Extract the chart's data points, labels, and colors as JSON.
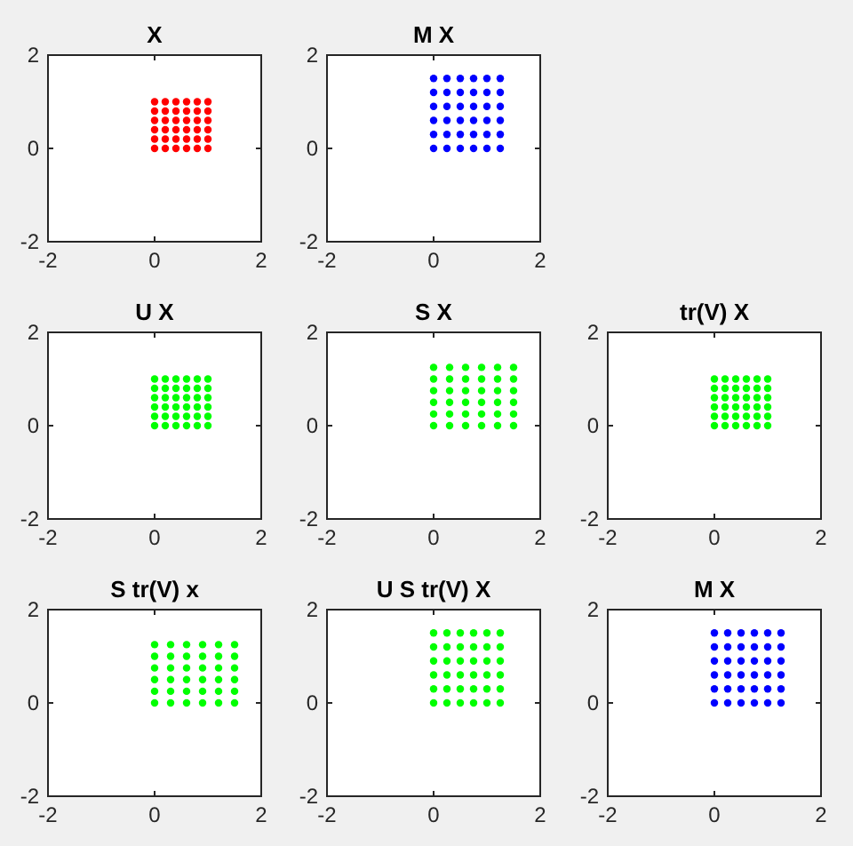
{
  "chart_data": [
    {
      "type": "scatter",
      "title": "X",
      "xlim": [
        -2,
        2
      ],
      "ylim": [
        -2,
        2
      ],
      "xticks": [
        -2,
        0,
        2
      ],
      "yticks": [
        -2,
        0,
        2
      ],
      "marker": "circle",
      "series": [
        {
          "color": "#ff0000",
          "x": [
            0,
            0,
            0,
            0,
            0,
            0,
            0.2,
            0.2,
            0.2,
            0.2,
            0.2,
            0.2,
            0.4,
            0.4,
            0.4,
            0.4,
            0.4,
            0.4,
            0.6,
            0.6,
            0.6,
            0.6,
            0.6,
            0.6,
            0.8,
            0.8,
            0.8,
            0.8,
            0.8,
            0.8,
            1,
            1,
            1,
            1,
            1,
            1
          ],
          "values": [
            0,
            0.2,
            0.4,
            0.6,
            0.8,
            1,
            0,
            0.2,
            0.4,
            0.6,
            0.8,
            1,
            0,
            0.2,
            0.4,
            0.6,
            0.8,
            1,
            0,
            0.2,
            0.4,
            0.6,
            0.8,
            1,
            0,
            0.2,
            0.4,
            0.6,
            0.8,
            1,
            0,
            0.2,
            0.4,
            0.6,
            0.8,
            1
          ]
        }
      ]
    },
    {
      "type": "scatter",
      "title": "M X",
      "xlim": [
        -2,
        2
      ],
      "ylim": [
        -2,
        2
      ],
      "xticks": [
        -2,
        0,
        2
      ],
      "yticks": [
        -2,
        0,
        2
      ],
      "marker": "circle",
      "series": [
        {
          "color": "#0000ff",
          "x": [
            0,
            0,
            0,
            0,
            0,
            0,
            0.25,
            0.25,
            0.25,
            0.25,
            0.25,
            0.25,
            0.5,
            0.5,
            0.5,
            0.5,
            0.5,
            0.5,
            0.75,
            0.75,
            0.75,
            0.75,
            0.75,
            0.75,
            1,
            1,
            1,
            1,
            1,
            1,
            1.25,
            1.25,
            1.25,
            1.25,
            1.25,
            1.25
          ],
          "values": [
            0,
            0.3,
            0.6,
            0.9,
            1.2,
            1.5,
            0,
            0.3,
            0.6,
            0.9,
            1.2,
            1.5,
            0,
            0.3,
            0.6,
            0.9,
            1.2,
            1.5,
            0,
            0.3,
            0.6,
            0.9,
            1.2,
            1.5,
            0,
            0.3,
            0.6,
            0.9,
            1.2,
            1.5,
            0,
            0.3,
            0.6,
            0.9,
            1.2,
            1.5
          ]
        }
      ]
    },
    {
      "type": "scatter",
      "title": "U X",
      "xlim": [
        -2,
        2
      ],
      "ylim": [
        -2,
        2
      ],
      "xticks": [
        -2,
        0,
        2
      ],
      "yticks": [
        -2,
        0,
        2
      ],
      "marker": "circle",
      "series": [
        {
          "color": "#00ff00",
          "x": [
            0,
            0,
            0,
            0,
            0,
            0,
            0.2,
            0.2,
            0.2,
            0.2,
            0.2,
            0.2,
            0.4,
            0.4,
            0.4,
            0.4,
            0.4,
            0.4,
            0.6,
            0.6,
            0.6,
            0.6,
            0.6,
            0.6,
            0.8,
            0.8,
            0.8,
            0.8,
            0.8,
            0.8,
            1,
            1,
            1,
            1,
            1,
            1
          ],
          "values": [
            0,
            0.2,
            0.4,
            0.6,
            0.8,
            1,
            0,
            0.2,
            0.4,
            0.6,
            0.8,
            1,
            0,
            0.2,
            0.4,
            0.6,
            0.8,
            1,
            0,
            0.2,
            0.4,
            0.6,
            0.8,
            1,
            0,
            0.2,
            0.4,
            0.6,
            0.8,
            1,
            0,
            0.2,
            0.4,
            0.6,
            0.8,
            1
          ]
        }
      ]
    },
    {
      "type": "scatter",
      "title": "S X",
      "xlim": [
        -2,
        2
      ],
      "ylim": [
        -2,
        2
      ],
      "xticks": [
        -2,
        0,
        2
      ],
      "yticks": [
        -2,
        0,
        2
      ],
      "marker": "circle",
      "series": [
        {
          "color": "#00ff00",
          "x": [
            0,
            0,
            0,
            0,
            0,
            0,
            0.3,
            0.3,
            0.3,
            0.3,
            0.3,
            0.3,
            0.6,
            0.6,
            0.6,
            0.6,
            0.6,
            0.6,
            0.9,
            0.9,
            0.9,
            0.9,
            0.9,
            0.9,
            1.2,
            1.2,
            1.2,
            1.2,
            1.2,
            1.2,
            1.5,
            1.5,
            1.5,
            1.5,
            1.5,
            1.5
          ],
          "values": [
            0,
            0.25,
            0.5,
            0.75,
            1,
            1.25,
            0,
            0.25,
            0.5,
            0.75,
            1,
            1.25,
            0,
            0.25,
            0.5,
            0.75,
            1,
            1.25,
            0,
            0.25,
            0.5,
            0.75,
            1,
            1.25,
            0,
            0.25,
            0.5,
            0.75,
            1,
            1.25,
            0,
            0.25,
            0.5,
            0.75,
            1,
            1.25
          ]
        }
      ]
    },
    {
      "type": "scatter",
      "title": "tr(V) X",
      "xlim": [
        -2,
        2
      ],
      "ylim": [
        -2,
        2
      ],
      "xticks": [
        -2,
        0,
        2
      ],
      "yticks": [
        -2,
        0,
        2
      ],
      "marker": "circle",
      "series": [
        {
          "color": "#00ff00",
          "x": [
            0,
            0,
            0,
            0,
            0,
            0,
            0.2,
            0.2,
            0.2,
            0.2,
            0.2,
            0.2,
            0.4,
            0.4,
            0.4,
            0.4,
            0.4,
            0.4,
            0.6,
            0.6,
            0.6,
            0.6,
            0.6,
            0.6,
            0.8,
            0.8,
            0.8,
            0.8,
            0.8,
            0.8,
            1,
            1,
            1,
            1,
            1,
            1
          ],
          "values": [
            0,
            0.2,
            0.4,
            0.6,
            0.8,
            1,
            0,
            0.2,
            0.4,
            0.6,
            0.8,
            1,
            0,
            0.2,
            0.4,
            0.6,
            0.8,
            1,
            0,
            0.2,
            0.4,
            0.6,
            0.8,
            1,
            0,
            0.2,
            0.4,
            0.6,
            0.8,
            1,
            0,
            0.2,
            0.4,
            0.6,
            0.8,
            1
          ]
        }
      ]
    },
    {
      "type": "scatter",
      "title": "S tr(V) x",
      "xlim": [
        -2,
        2
      ],
      "ylim": [
        -2,
        2
      ],
      "xticks": [
        -2,
        0,
        2
      ],
      "yticks": [
        -2,
        0,
        2
      ],
      "marker": "circle",
      "series": [
        {
          "color": "#00ff00",
          "x": [
            0,
            0,
            0,
            0,
            0,
            0,
            0.3,
            0.3,
            0.3,
            0.3,
            0.3,
            0.3,
            0.6,
            0.6,
            0.6,
            0.6,
            0.6,
            0.6,
            0.9,
            0.9,
            0.9,
            0.9,
            0.9,
            0.9,
            1.2,
            1.2,
            1.2,
            1.2,
            1.2,
            1.2,
            1.5,
            1.5,
            1.5,
            1.5,
            1.5,
            1.5
          ],
          "values": [
            0,
            0.25,
            0.5,
            0.75,
            1,
            1.25,
            0,
            0.25,
            0.5,
            0.75,
            1,
            1.25,
            0,
            0.25,
            0.5,
            0.75,
            1,
            1.25,
            0,
            0.25,
            0.5,
            0.75,
            1,
            1.25,
            0,
            0.25,
            0.5,
            0.75,
            1,
            1.25,
            0,
            0.25,
            0.5,
            0.75,
            1,
            1.25
          ]
        }
      ]
    },
    {
      "type": "scatter",
      "title": "U S tr(V) X",
      "xlim": [
        -2,
        2
      ],
      "ylim": [
        -2,
        2
      ],
      "xticks": [
        -2,
        0,
        2
      ],
      "yticks": [
        -2,
        0,
        2
      ],
      "marker": "circle",
      "series": [
        {
          "color": "#00ff00",
          "x": [
            0,
            0,
            0,
            0,
            0,
            0,
            0.25,
            0.25,
            0.25,
            0.25,
            0.25,
            0.25,
            0.5,
            0.5,
            0.5,
            0.5,
            0.5,
            0.5,
            0.75,
            0.75,
            0.75,
            0.75,
            0.75,
            0.75,
            1,
            1,
            1,
            1,
            1,
            1,
            1.25,
            1.25,
            1.25,
            1.25,
            1.25,
            1.25
          ],
          "values": [
            0,
            0.3,
            0.6,
            0.9,
            1.2,
            1.5,
            0,
            0.3,
            0.6,
            0.9,
            1.2,
            1.5,
            0,
            0.3,
            0.6,
            0.9,
            1.2,
            1.5,
            0,
            0.3,
            0.6,
            0.9,
            1.2,
            1.5,
            0,
            0.3,
            0.6,
            0.9,
            1.2,
            1.5,
            0,
            0.3,
            0.6,
            0.9,
            1.2,
            1.5
          ]
        }
      ]
    },
    {
      "type": "scatter",
      "title": "M X",
      "xlim": [
        -2,
        2
      ],
      "ylim": [
        -2,
        2
      ],
      "xticks": [
        -2,
        0,
        2
      ],
      "yticks": [
        -2,
        0,
        2
      ],
      "marker": "circle",
      "series": [
        {
          "color": "#0000ff",
          "x": [
            0,
            0,
            0,
            0,
            0,
            0,
            0.25,
            0.25,
            0.25,
            0.25,
            0.25,
            0.25,
            0.5,
            0.5,
            0.5,
            0.5,
            0.5,
            0.5,
            0.75,
            0.75,
            0.75,
            0.75,
            0.75,
            0.75,
            1,
            1,
            1,
            1,
            1,
            1,
            1.25,
            1.25,
            1.25,
            1.25,
            1.25,
            1.25
          ],
          "values": [
            0,
            0.3,
            0.6,
            0.9,
            1.2,
            1.5,
            0,
            0.3,
            0.6,
            0.9,
            1.2,
            1.5,
            0,
            0.3,
            0.6,
            0.9,
            1.2,
            1.5,
            0,
            0.3,
            0.6,
            0.9,
            1.2,
            1.5,
            0,
            0.3,
            0.6,
            0.9,
            1.2,
            1.5,
            0,
            0.3,
            0.6,
            0.9,
            1.2,
            1.5
          ]
        }
      ]
    }
  ]
}
